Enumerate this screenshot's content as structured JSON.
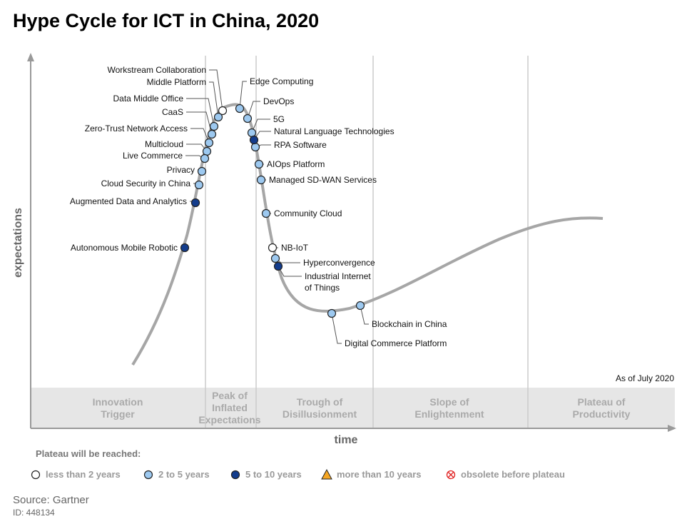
{
  "title": "Hype Cycle for ICT in China, 2020",
  "phases": [
    "Innovation\nTrigger",
    "Peak of\nInflated\nExpectations",
    "Trough of\nDisillusionment",
    "Slope of\nEnlightenment",
    "Plateau of\nProductivity"
  ],
  "axes": {
    "y": "expectations",
    "x": "time"
  },
  "as_of": "As of July 2020",
  "legend": {
    "title": "Plateau will be reached:",
    "groups": [
      {
        "label": "less than 2 years",
        "items": [
          "Workstream Collaboration",
          "NB-IoT"
        ]
      },
      {
        "label": "2 to 5 years",
        "items": [
          "Edge Computing",
          "Middle Platform",
          "DevOps",
          "Data Middle Office",
          "5G",
          "CaaS",
          "Zero-Trust Network Access",
          "RPA Software",
          "Multicloud",
          "Live Commerce",
          "Privacy",
          "AIOps Platform",
          "Managed SD-WAN Services",
          "Cloud Security in China",
          "Community Cloud",
          "Hyperconvergence",
          "Digital Commerce Platform",
          "Blockchain in China"
        ]
      },
      {
        "label": "5 to 10 years",
        "items": [
          "Natural Language Technologies",
          "Augmented Data and Analytics",
          "Autonomous Mobile Robotic",
          "Industrial Internet\nof Things"
        ]
      },
      {
        "label": "more than 10 years",
        "items": []
      },
      {
        "label": "obsolete before plateau",
        "items": []
      }
    ]
  },
  "source": "Source: Gartner",
  "id": "ID: 448134"
}
